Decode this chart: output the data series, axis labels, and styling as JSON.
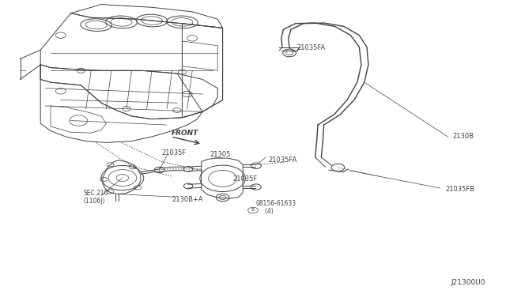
{
  "bg_color": "#ffffff",
  "line_color": "#404040",
  "fig_width": 6.4,
  "fig_height": 3.72,
  "labels": {
    "21035FA_top": [
      0.587,
      0.838,
      "21035FA"
    ],
    "2130B": [
      0.895,
      0.535,
      "2130B"
    ],
    "21035FB": [
      0.88,
      0.355,
      "21035FB"
    ],
    "21035FA_mid": [
      0.53,
      0.455,
      "21035FA"
    ],
    "21305": [
      0.415,
      0.475,
      "21305"
    ],
    "21035F_ldr": [
      0.32,
      0.48,
      "21035F"
    ],
    "21035F_bot": [
      0.46,
      0.39,
      "21035F"
    ],
    "2130B_A": [
      0.34,
      0.32,
      "2130B+A"
    ],
    "SEC210": [
      0.165,
      0.33,
      "SEC.210\n(1106J)"
    ],
    "bolt": [
      0.505,
      0.295,
      "08156-61633\n     (4)"
    ],
    "diagram_id": [
      0.96,
      0.04,
      "J21300U0"
    ],
    "front_txt": [
      0.345,
      0.54,
      "FRONT"
    ]
  }
}
